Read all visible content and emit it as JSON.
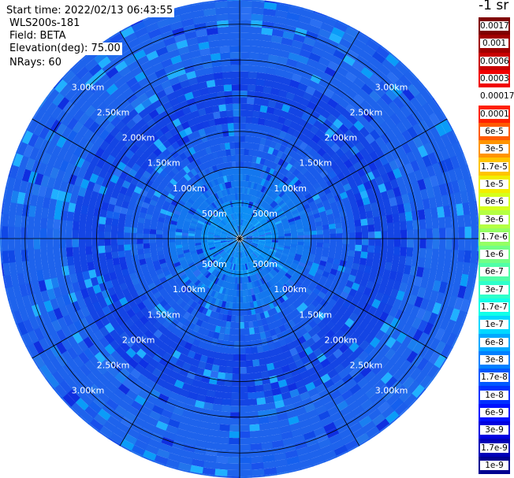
{
  "header": {
    "start_time": "Start time: 2022/02/13 06:43:55",
    "instrument": "WLS200s-181",
    "field": "Field: BETA",
    "elevation": "Elevation(deg): 75.00",
    "nrays": "NRays: 60"
  },
  "colorbar": {
    "title": "-1 sr",
    "labels": [
      "0.0017",
      "0.001",
      "0.0006",
      "0.0003",
      "0.00017",
      "0.0001",
      "6e-5",
      "3e-5",
      "1.7e-5",
      "1e-5",
      "6e-6",
      "3e-6",
      "1.7e-6",
      "1e-6",
      "6e-7",
      "3e-7",
      "1.7e-7",
      "1e-7",
      "6e-8",
      "3e-8",
      "1.7e-8",
      "1e-8",
      "6e-9",
      "3e-9",
      "1.7e-9",
      "1e-9"
    ],
    "colors": [
      "#7f0000",
      "#a00000",
      "#c80000",
      "#f00000",
      "#ffffff",
      "#ff2000",
      "#ff5a00",
      "#ff9400",
      "#ffc400",
      "#f2ee00",
      "#d6ff1d",
      "#b4ff43",
      "#94ff63",
      "#72ff85",
      "#50ffa7",
      "#2effca",
      "#10ffe8",
      "#00d8ff",
      "#00a8ff",
      "#0080ff",
      "#0058ff",
      "#0030ff",
      "#0010ff",
      "#0000e0",
      "#0000b8",
      "#000090"
    ]
  },
  "chart_data": {
    "type": "polar-ppi",
    "field": "BETA",
    "units": "sr-1",
    "elevation_deg": 75.0,
    "nrays": 60,
    "range_rings_km": [
      0.5,
      1.0,
      1.5,
      2.0,
      2.5,
      3.0
    ],
    "ring_labels": [
      "500m",
      "1.00km",
      "1.50km",
      "2.00km",
      "2.50km",
      "3.00km"
    ],
    "max_range_km": 3.35,
    "color_scale": "log",
    "value_range": [
      1e-09,
      0.0017
    ],
    "grid": true,
    "spoke_angles_deg": [
      0,
      30,
      60,
      90,
      120,
      150,
      180,
      210,
      240,
      270,
      300,
      330
    ],
    "ring_mean_color": [
      {
        "range_km_max": 0.5,
        "color": "#0d8ef5"
      },
      {
        "range_km_max": 1.0,
        "color": "#1477ee"
      },
      {
        "range_km_max": 1.6,
        "color": "#1a5ceb"
      },
      {
        "range_km_max": 2.3,
        "color": "#1445e4"
      },
      {
        "range_km_max": 3.35,
        "color": "#1e63ec"
      }
    ]
  }
}
